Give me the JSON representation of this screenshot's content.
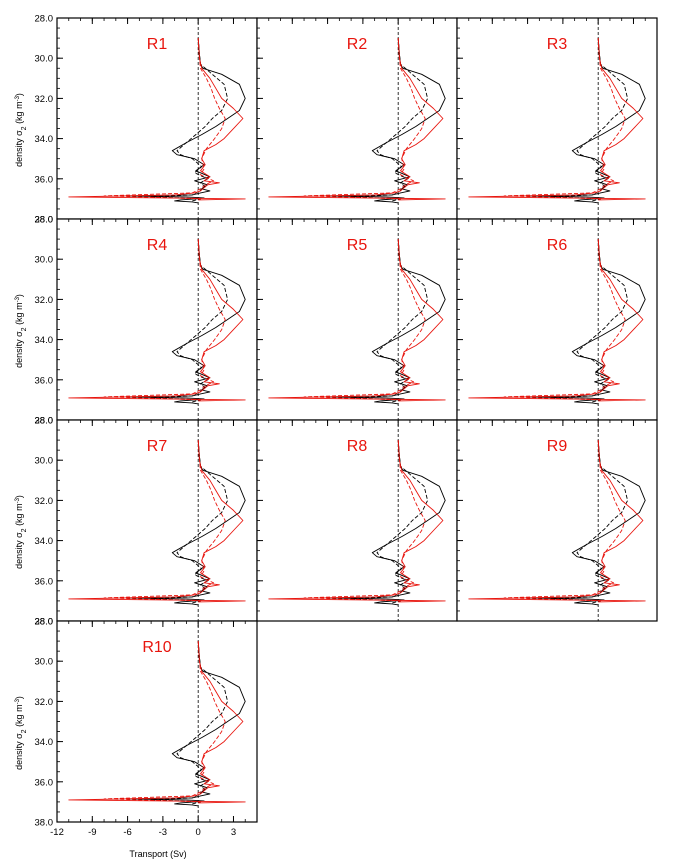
{
  "figure": {
    "ylabel_text": "density σ",
    "ylabel_sub": "2",
    "ylabel_units": " (kg m",
    "ylabel_sup": "-3",
    "ylabel_close": ")",
    "xlabel": "Transport (Sv)"
  },
  "chart_data": {
    "type": "line",
    "panels": [
      "R1",
      "R2",
      "R3",
      "R4",
      "R5",
      "R6",
      "R7",
      "R8",
      "R9",
      "R10"
    ],
    "xlabel": "Transport (Sv)",
    "ylabel": "density σ2 (kg m-3)",
    "xlim": [
      -12,
      5
    ],
    "ylim": [
      28.0,
      38.0
    ],
    "y_inverted": true,
    "x_ticks": [
      "-12",
      "-9",
      "-6",
      "-3",
      "0",
      "3"
    ],
    "x_tick_values": [
      -12,
      -9,
      -6,
      -3,
      0,
      3
    ],
    "y_ticks": [
      "28.0",
      "30.0",
      "32.0",
      "34.0",
      "36.0",
      "38.0"
    ],
    "y_tick_values": [
      28,
      30,
      32,
      34,
      36,
      38
    ],
    "series_colors": [
      "#000000",
      "#000000",
      "#e8150e",
      "#e8150e"
    ],
    "series_styles": [
      "solid",
      "dashed",
      "solid",
      "dashed"
    ],
    "reference_line": {
      "x": 0,
      "style": "dashed",
      "color": "#000000"
    },
    "series": [
      {
        "y": [
          29.0,
          29.8,
          30.3,
          30.5,
          30.8,
          31.3,
          32.0,
          32.6,
          33.0,
          33.4,
          33.8,
          34.2,
          34.6,
          34.8,
          35.0,
          35.3,
          35.6,
          35.9,
          36.1,
          36.3,
          36.5,
          36.6,
          36.7,
          36.8,
          36.85,
          36.9,
          36.95,
          37.0,
          37.05,
          37.1,
          37.15,
          37.2
        ],
        "x": [
          0.0,
          0.1,
          0.2,
          0.4,
          2.0,
          3.5,
          4.0,
          3.5,
          2.5,
          1.5,
          0.3,
          -1.0,
          -2.2,
          -1.8,
          -0.3,
          0.5,
          -0.2,
          1.0,
          -0.3,
          0.8,
          0.3,
          1.0,
          0.2,
          -0.5,
          -6.0,
          -1.0,
          0.5,
          -0.3,
          -1.5,
          -2.0,
          -0.5,
          0.0
        ]
      },
      {
        "y": [
          29.0,
          29.8,
          30.3,
          30.8,
          31.3,
          32.0,
          32.6,
          33.0,
          33.4,
          33.8,
          34.2,
          34.6,
          34.8,
          35.0,
          35.4,
          35.7,
          36.0,
          36.2,
          36.4,
          36.6,
          36.8,
          36.9,
          37.0,
          37.1
        ],
        "x": [
          0.0,
          0.1,
          0.2,
          1.2,
          2.2,
          2.5,
          2.0,
          1.2,
          0.6,
          -0.2,
          -1.0,
          -1.8,
          -1.5,
          -0.5,
          0.3,
          -0.3,
          0.8,
          0.2,
          0.6,
          0.1,
          -0.5,
          -4.0,
          0.2,
          -0.5
        ]
      },
      {
        "y": [
          29.0,
          30.0,
          30.5,
          31.0,
          31.5,
          32.0,
          32.5,
          33.0,
          33.5,
          34.0,
          34.3,
          34.6,
          35.0,
          35.3,
          35.6,
          35.9,
          36.1,
          36.2,
          36.3,
          36.5,
          36.6,
          36.7,
          36.8,
          36.9,
          36.95,
          37.0,
          37.05
        ],
        "x": [
          0.0,
          0.1,
          0.3,
          1.0,
          1.5,
          2.0,
          3.0,
          3.8,
          3.0,
          2.2,
          1.5,
          0.5,
          0.3,
          0.6,
          0.2,
          1.0,
          0.5,
          1.8,
          0.8,
          0.4,
          0.2,
          -0.3,
          -2.0,
          -11.0,
          -3.0,
          4.0,
          0.0
        ]
      },
      {
        "y": [
          29.0,
          30.0,
          30.5,
          31.0,
          31.5,
          32.0,
          32.5,
          33.0,
          33.5,
          34.0,
          34.5,
          35.0,
          35.5,
          35.8,
          36.1,
          36.3,
          36.5,
          36.7,
          36.85,
          36.95,
          37.0
        ],
        "x": [
          0.0,
          0.1,
          0.2,
          0.7,
          1.1,
          1.4,
          1.8,
          2.3,
          2.0,
          1.4,
          0.7,
          0.3,
          0.5,
          0.2,
          1.3,
          0.6,
          0.2,
          -0.5,
          -8.0,
          -2.0,
          0.2
        ]
      }
    ]
  }
}
